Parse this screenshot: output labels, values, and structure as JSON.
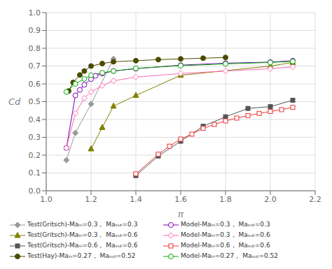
{
  "chart_data": {
    "type": "line",
    "x_label": "π",
    "y_label": "Cd",
    "xlim": [
      1.0,
      2.2
    ],
    "ylim": [
      0.0,
      1.0
    ],
    "xticks": [
      {
        "value": 1.0,
        "label": "1.0"
      },
      1.2,
      1.4,
      1.6,
      1.8,
      {
        "value": 2.0,
        "label": "2.0"
      },
      2.2
    ],
    "yticks": [
      {
        "value": 0,
        "label": "0.0"
      },
      0.1,
      0.2,
      0.3,
      0.4,
      0.5,
      0.6,
      0.7,
      0.8,
      0.9,
      {
        "value": 1,
        "label": "1.0"
      }
    ],
    "grid": true,
    "legend": "bottom",
    "series": [
      {
        "name": "Test(Gritsch)-Maᵢₙ=0.3， Maₒᵤₜ=0.3",
        "color": "#999999",
        "marker": "diamond",
        "line_style": "solid",
        "x": [
          1.09,
          1.13,
          1.2,
          1.3
        ],
        "values": [
          0.172,
          0.325,
          0.487,
          0.74
        ]
      },
      {
        "name": "Model-Maᵢₙ=0.3， Maₒᵤₜ=0.3",
        "color": "#7B00BD",
        "marker": "open-circle",
        "line_style": "solid",
        "x": [
          1.09,
          1.13,
          1.15,
          1.17,
          1.2,
          1.22,
          1.25,
          1.3,
          1.4,
          1.6,
          1.8,
          2.0,
          2.1
        ],
        "values": [
          0.24,
          0.535,
          0.566,
          0.595,
          0.627,
          0.645,
          0.658,
          0.672,
          0.685,
          0.705,
          0.716,
          0.722,
          0.73
        ]
      },
      {
        "name": "Test(Gritsch)-Maᵢₙ=0.3， Maₒᵤₜ=0.6",
        "color": "#808000",
        "marker": "triangle",
        "line_style": "solid",
        "x": [
          1.2,
          1.25,
          1.3,
          1.4,
          1.6,
          2.0,
          2.1
        ],
        "values": [
          0.235,
          0.355,
          0.475,
          0.535,
          0.648,
          0.7,
          0.72
        ]
      },
      {
        "name": "Model-Maᵢₙ=0.3， Maₒᵤₜ=0.6",
        "color": "#FF69B4",
        "marker": "open-diamond",
        "line_style": "solid",
        "x": [
          1.09,
          1.13,
          1.17,
          1.2,
          1.25,
          1.3,
          1.4,
          1.6,
          1.8,
          2.0,
          2.1
        ],
        "values": [
          0.24,
          0.435,
          0.52,
          0.555,
          0.59,
          0.617,
          0.638,
          0.658,
          0.672,
          0.685,
          0.695
        ]
      },
      {
        "name": "Test(Gritsch)-Maᵢₙ=0.6， Maₒᵤₜ=0.6",
        "color": "#555555",
        "marker": "square",
        "line_style": "solid",
        "x": [
          1.4,
          1.5,
          1.6,
          1.7,
          1.8,
          1.9,
          2.0,
          2.1
        ],
        "values": [
          0.085,
          0.195,
          0.278,
          0.362,
          0.415,
          0.462,
          0.472,
          0.508
        ]
      },
      {
        "name": "Model-Maᵢₙ=0.6， Maₒᵤₜ=0.6",
        "color": "#EE3333",
        "marker": "open-square",
        "line_style": "solid",
        "x": [
          1.4,
          1.5,
          1.55,
          1.6,
          1.65,
          1.7,
          1.75,
          1.8,
          1.85,
          1.9,
          1.95,
          2.0,
          2.05,
          2.1
        ],
        "values": [
          0.095,
          0.205,
          0.25,
          0.29,
          0.318,
          0.35,
          0.372,
          0.392,
          0.408,
          0.422,
          0.434,
          0.445,
          0.455,
          0.468
        ]
      },
      {
        "name": "Test(Hay)-Maᵢₙ=0.27， Maₒᵤₜ=0.52",
        "color": "#4B4B00",
        "marker": "circle",
        "line_style": "solid",
        "x": [
          1.1,
          1.12,
          1.15,
          1.17,
          1.2,
          1.25,
          1.3,
          1.4,
          1.5,
          1.6,
          1.7,
          1.8
        ],
        "values": [
          0.56,
          0.608,
          0.65,
          0.672,
          0.7,
          0.714,
          0.724,
          0.73,
          0.736,
          0.74,
          0.744,
          0.748
        ]
      },
      {
        "name": "Model-Maᵢₙ=0.27， Maₒᵤₜ=0.52",
        "color": "#00AA00",
        "marker": "open-circle",
        "line_style": "solid",
        "x": [
          1.09,
          1.13,
          1.17,
          1.2,
          1.25,
          1.3,
          1.4,
          1.6,
          1.8,
          2.0,
          2.1
        ],
        "values": [
          0.555,
          0.6,
          0.628,
          0.648,
          0.662,
          0.672,
          0.687,
          0.702,
          0.712,
          0.72,
          0.726
        ]
      }
    ]
  }
}
